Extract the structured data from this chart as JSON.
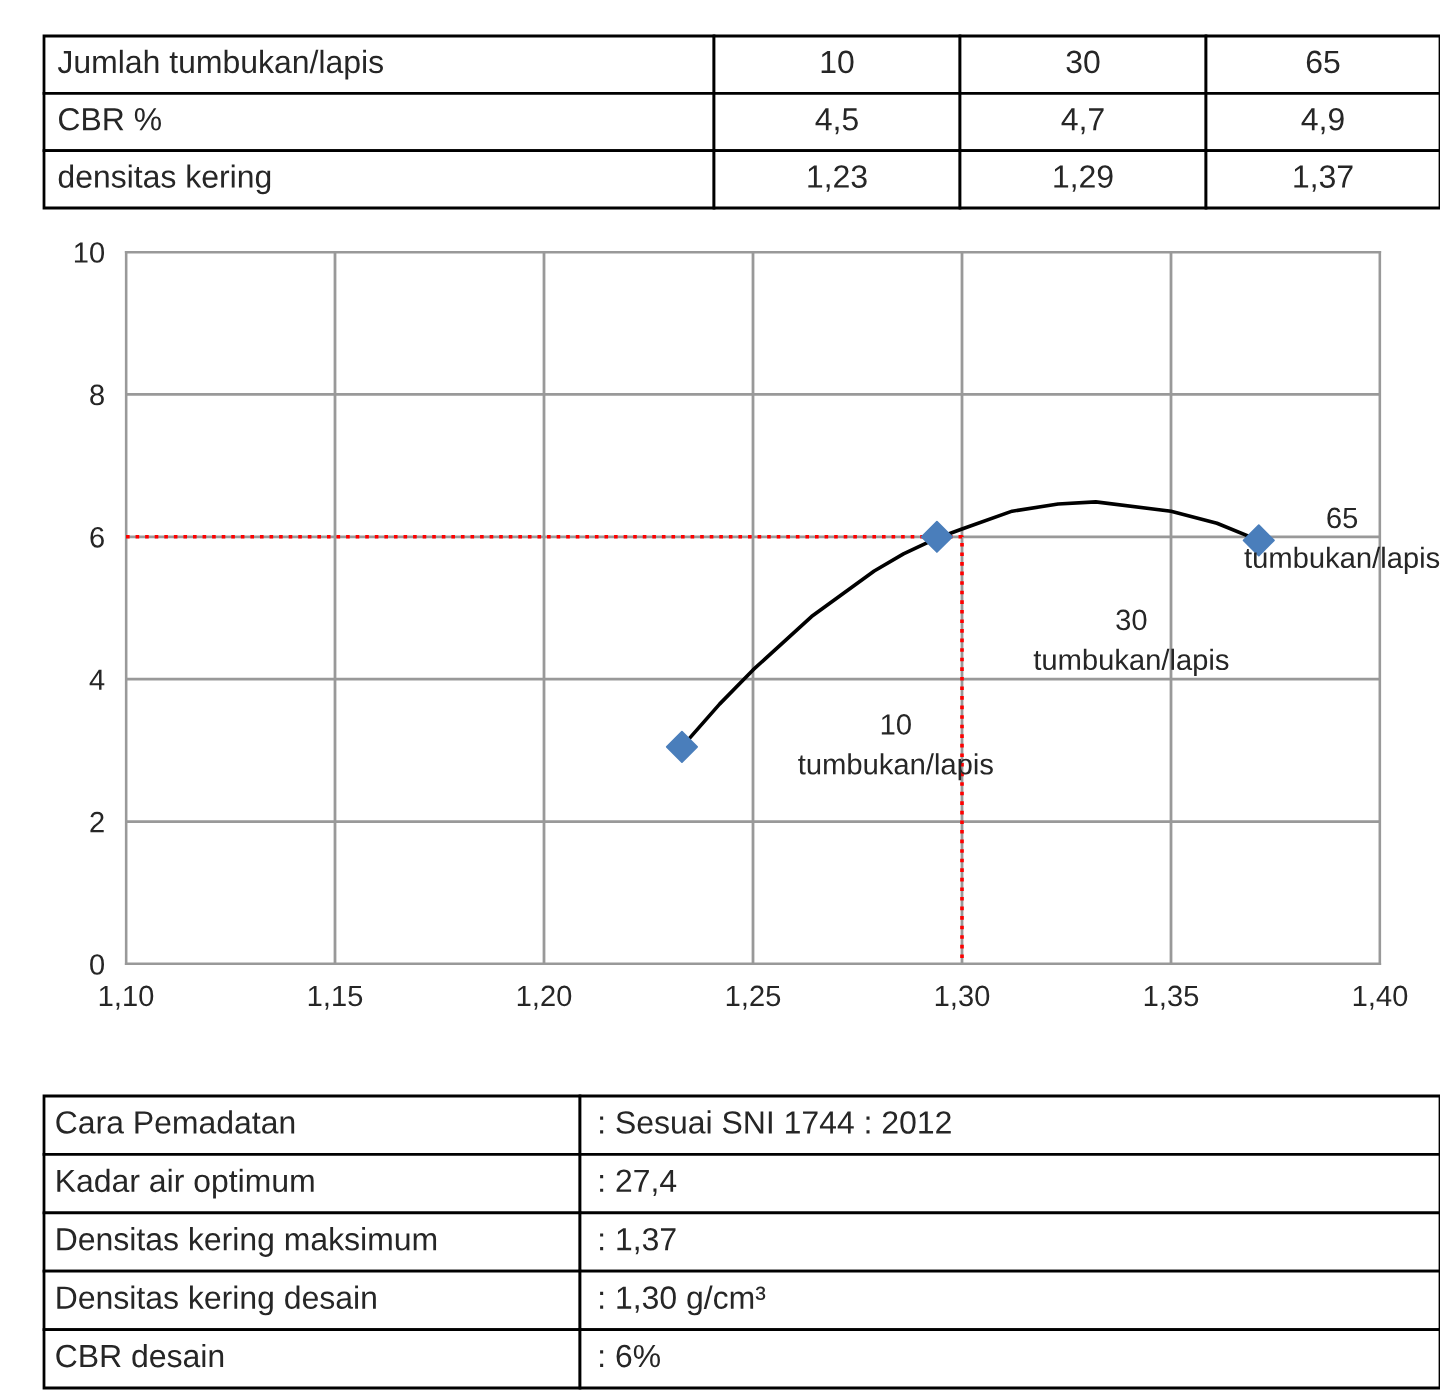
{
  "chart_data": {
    "type": "scatter",
    "xlim": [
      1.1,
      1.4
    ],
    "ylim": [
      0,
      10
    ],
    "xticks": [
      {
        "value": 1.1,
        "label": "1,10"
      },
      {
        "value": 1.15,
        "label": "1,15"
      },
      {
        "value": 1.2,
        "label": "1,20"
      },
      {
        "value": 1.25,
        "label": "1,25"
      },
      {
        "value": 1.3,
        "label": "1,30"
      },
      {
        "value": 1.35,
        "label": "1,35"
      },
      {
        "value": 1.4,
        "label": "1,40"
      }
    ],
    "yticks": [
      0,
      2,
      4,
      6,
      8,
      10
    ],
    "grid": true,
    "legend": false,
    "series": [
      {
        "type": "line",
        "color": "#000000",
        "marker": "none",
        "line_style": "solid",
        "x": [
          1.233,
          1.242,
          1.25,
          1.264,
          1.279,
          1.286,
          1.294,
          1.3,
          1.312,
          1.323,
          1.332,
          1.35,
          1.361,
          1.371
        ],
        "values": [
          3.05,
          3.65,
          4.13,
          4.88,
          5.52,
          5.76,
          5.98,
          6.11,
          6.36,
          6.46,
          6.49,
          6.36,
          6.19,
          5.95
        ]
      },
      {
        "type": "line",
        "color": "#ff0000",
        "marker": "none",
        "line_style": "dotted",
        "x": [
          1.1,
          1.3,
          1.3
        ],
        "values": [
          6,
          6,
          0
        ]
      },
      {
        "type": "scatter",
        "color": "#4a7ebb",
        "marker": "diamond",
        "x": [
          1.233,
          1.294,
          1.371
        ],
        "values": [
          3.05,
          6.0,
          5.95
        ]
      }
    ],
    "annotations": [
      "10\ntumbukan/lapis",
      "30\ntumbukan/lapis",
      "65\ntumbukan/lapis",
      "Jumlah tumbukan/lapis",
      "10",
      "30",
      "65",
      "CBR %",
      "4,5",
      "4,7",
      "4,9",
      "densitas kering",
      "1,23",
      "1,29",
      "1,37",
      "Cara Pemadatan",
      ": Sesuai SNI 1744 : 2012",
      "Kadar air optimum",
      ": 27,4",
      "Densitas kering maksimum",
      ": 1,37",
      "Densitas kering desain",
      ": 1,30 g/cm³",
      "CBR desain",
      ": 6%"
    ]
  }
}
